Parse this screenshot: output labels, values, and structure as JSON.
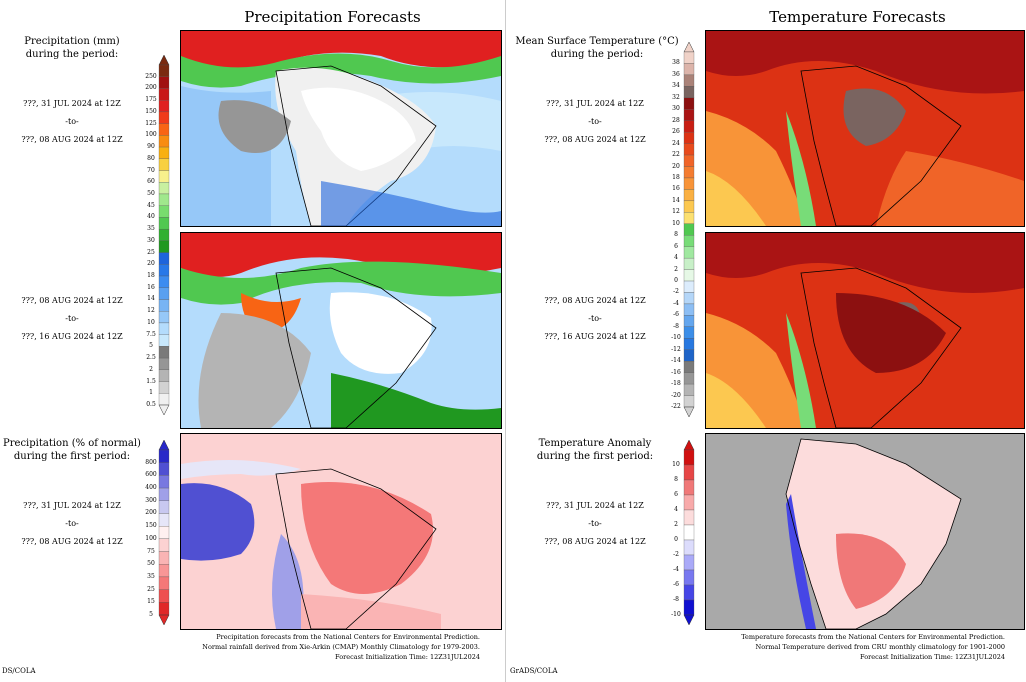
{
  "left": {
    "title": "Precipitation Forecasts",
    "label_top": [
      "Precipitation (mm)",
      "during the period:"
    ],
    "label_bottom": [
      "Precipitation (% of normal)",
      "during the first period:"
    ],
    "period1": [
      "???, 31 JUL 2024 at 12Z",
      "-to-",
      "???, 08 AUG 2024 at 12Z"
    ],
    "period2": [
      "???, 08 AUG 2024 at 12Z",
      "-to-",
      "???, 16 AUG 2024 at 12Z"
    ],
    "period3": [
      "???, 31 JUL 2024 at 12Z",
      "-to-",
      "???, 08 AUG 2024 at 12Z"
    ],
    "precip_scale": [
      "250",
      "200",
      "175",
      "150",
      "125",
      "100",
      "90",
      "80",
      "70",
      "60",
      "50",
      "45",
      "40",
      "35",
      "30",
      "25",
      "20",
      "18",
      "16",
      "14",
      "12",
      "10",
      "7.5",
      "5",
      "2.5",
      "2",
      "1.5",
      "1",
      "0.5"
    ],
    "pct_scale": [
      "800",
      "600",
      "400",
      "300",
      "200",
      "150",
      "100",
      "75",
      "50",
      "35",
      "25",
      "15",
      "5"
    ],
    "footer": [
      "Precipitation forecasts from the National Centers for Environmental Prediction.",
      "Normal rainfall derived from Xie-Arkin (CMAP) Monthly Climatology for 1979-2003.",
      "Forecast Initialization Time: 12Z31JUL2024"
    ],
    "corner": "DS/COLA"
  },
  "right": {
    "title": "Temperature Forecasts",
    "label_top": [
      "Mean Surface Temperature (°C)",
      "during the period:"
    ],
    "label_bottom": [
      "Temperature Anomaly",
      "during the first period:"
    ],
    "period1": [
      "???, 31 JUL 2024 at 12Z",
      "-to-",
      "???, 08 AUG 2024 at 12Z"
    ],
    "period2": [
      "???, 08 AUG 2024 at 12Z",
      "-to-",
      "???, 16 AUG 2024 at 12Z"
    ],
    "period3": [
      "???, 31 JUL 2024 at 12Z",
      "-to-",
      "???, 08 AUG 2024 at 12Z"
    ],
    "temp_scale": [
      "38",
      "36",
      "34",
      "32",
      "30",
      "28",
      "26",
      "24",
      "22",
      "20",
      "18",
      "16",
      "14",
      "12",
      "10",
      "8",
      "6",
      "4",
      "2",
      "0",
      "-2",
      "-4",
      "-6",
      "-8",
      "-10",
      "-12",
      "-14",
      "-16",
      "-18",
      "-20",
      "-22"
    ],
    "anom_scale": [
      "10",
      "8",
      "6",
      "4",
      "2",
      "0",
      "-2",
      "-4",
      "-6",
      "-8",
      "-10"
    ],
    "footer": [
      "Temperature forecasts from the National Centers for Environmental Prediction.",
      "Normal Temperature derived from CRU monthly climatology for 1901-2000",
      "Forecast Initialization Time: 12Z31JUL2024"
    ],
    "corner": "GrADS/COLA"
  },
  "colors": {
    "precip": [
      "#7a2a10",
      "#a01010",
      "#c81818",
      "#e02020",
      "#f03a1a",
      "#f86414",
      "#f88c10",
      "#f8b010",
      "#f8d040",
      "#f8f08c",
      "#c8f0a0",
      "#a0e88c",
      "#78dc6e",
      "#50c850",
      "#30b030",
      "#209820",
      "#1e64dc",
      "#2878e8",
      "#3c8cf0",
      "#5aa0f0",
      "#78b4f4",
      "#96c8f8",
      "#b4dcfc",
      "#c8e8fc",
      "#7a7a7a",
      "#969696",
      "#b4b4b4",
      "#d2d2d2",
      "#f0f0f0"
    ],
    "pct": [
      "#2828c8",
      "#5050d2",
      "#7878e0",
      "#a0a0e8",
      "#c8c8f0",
      "#e6e6f8",
      "#fff0f0",
      "#fcd2d2",
      "#fab4b4",
      "#f89696",
      "#f47878",
      "#ee5050",
      "#e02828"
    ],
    "temp": [
      "#f0d2c8",
      "#dcb4aa",
      "#aa8278",
      "#7a6460",
      "#8c1010",
      "#aa1414",
      "#c81e14",
      "#dc3214",
      "#e84a1c",
      "#f06428",
      "#f47c30",
      "#f89438",
      "#fab042",
      "#fcc850",
      "#fce070",
      "#50c850",
      "#78dc78",
      "#a0e8a0",
      "#c8f0c8",
      "#e6f8e6",
      "#dcecfc",
      "#b4d6f8",
      "#8cbef4",
      "#64a6ee",
      "#3c8ee8",
      "#2878e0",
      "#1e64c8",
      "#7a7a7a",
      "#969696",
      "#b4b4b4",
      "#d2d2d2"
    ],
    "anom": [
      "#d01010",
      "#e64646",
      "#f07878",
      "#f8aaaa",
      "#fcdcdc",
      "#ffffff",
      "#dcdcfc",
      "#aaaaf8",
      "#7878f0",
      "#4646e6",
      "#1010d0"
    ]
  }
}
